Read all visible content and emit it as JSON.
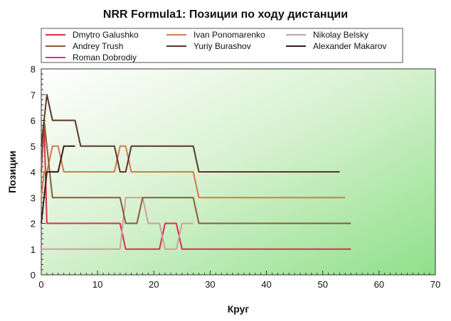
{
  "chart_data": {
    "type": "line",
    "title": "NRR Formula1: Позиции по ходу дистанции",
    "xlabel": "Круг",
    "ylabel": "Позиции",
    "xlim": [
      0,
      70
    ],
    "ylim": [
      0,
      8
    ],
    "xticks": [
      0,
      10,
      20,
      30,
      40,
      50,
      60,
      70
    ],
    "yticks": [
      0,
      1,
      2,
      3,
      4,
      5,
      6,
      7,
      8
    ],
    "grid": false,
    "legend_position": "top",
    "series": [
      {
        "name": "Dmytro Galushko",
        "color": "#d8304a",
        "points": [
          [
            0,
            4
          ],
          [
            0.5,
            5.8
          ],
          [
            1,
            2
          ],
          [
            14,
            2
          ],
          [
            15,
            1
          ],
          [
            21,
            1
          ],
          [
            22,
            2
          ],
          [
            24,
            2
          ],
          [
            25,
            1
          ],
          [
            55,
            1
          ]
        ]
      },
      {
        "name": "Ivan Ponomarenko",
        "color": "#d8784c",
        "points": [
          [
            0,
            3
          ],
          [
            0.5,
            4
          ],
          [
            1,
            4
          ],
          [
            2,
            5
          ],
          [
            3,
            5
          ],
          [
            4,
            4
          ],
          [
            13,
            4
          ],
          [
            14,
            5
          ],
          [
            15,
            5
          ],
          [
            16,
            4
          ],
          [
            27,
            4
          ],
          [
            28,
            3
          ],
          [
            54,
            3
          ]
        ]
      },
      {
        "name": "Nikolay Belsky",
        "color": "#c8a0a0",
        "points": [
          [
            0,
            1
          ],
          [
            14,
            1
          ],
          [
            15,
            3
          ],
          [
            18,
            3
          ],
          [
            19,
            2
          ],
          [
            21,
            2
          ],
          [
            22,
            1
          ],
          [
            24,
            1
          ],
          [
            25,
            2
          ],
          [
            27,
            2
          ]
        ]
      },
      {
        "name": "Andrey Trush",
        "color": "#8c5a38",
        "points": [
          [
            0,
            4
          ],
          [
            0.5,
            6
          ],
          [
            1,
            5
          ],
          [
            2,
            3
          ],
          [
            14,
            3
          ],
          [
            15,
            2
          ],
          [
            17,
            2
          ],
          [
            18,
            3
          ],
          [
            27,
            3
          ],
          [
            28,
            2
          ],
          [
            55,
            2
          ]
        ]
      },
      {
        "name": "Yuriy Burashov",
        "color": "#5c3628",
        "points": [
          [
            0,
            5
          ],
          [
            1,
            7
          ],
          [
            2,
            6
          ],
          [
            6,
            6
          ],
          [
            7,
            5
          ],
          [
            13,
            5
          ],
          [
            14,
            4
          ],
          [
            15,
            4
          ],
          [
            16,
            5
          ],
          [
            27,
            5
          ],
          [
            28,
            4
          ],
          [
            53,
            4
          ]
        ]
      },
      {
        "name": "Alexander Makarov",
        "color": "#3a1a1a",
        "points": [
          [
            0,
            2
          ],
          [
            1,
            4
          ],
          [
            3,
            4
          ],
          [
            4,
            5
          ],
          [
            6,
            5
          ]
        ]
      },
      {
        "name": "Roman Dobrodiy",
        "color": "#e0308c",
        "points": []
      }
    ]
  }
}
